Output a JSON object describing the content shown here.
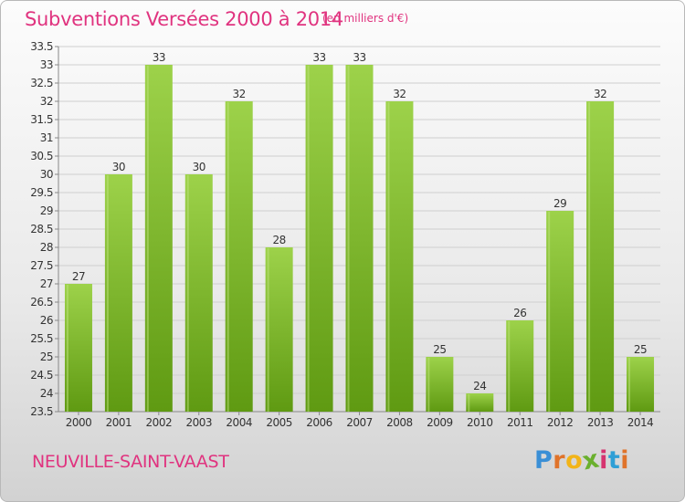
{
  "header": {
    "title": "Subventions Versées 2000 à 2014",
    "subtitle": "(en milliers d'€)"
  },
  "footer": {
    "commune": "NEUVILLE-SAINT-VAAST",
    "logo_letters": [
      "P",
      "r",
      "o",
      "x",
      "i",
      "t",
      "i"
    ]
  },
  "colors": {
    "title": "#e0337f",
    "bar_top": "#9dd24a",
    "bar_bottom": "#5f9a12",
    "grid": "#cfcfcf",
    "logo": [
      "#3a8fd6",
      "#e0732a",
      "#f2b418",
      "#6ab02e",
      "#d6336f",
      "#2f9fd6",
      "#e0732a"
    ]
  },
  "chart_data": {
    "type": "bar",
    "categories": [
      "2000",
      "2001",
      "2002",
      "2003",
      "2004",
      "2005",
      "2006",
      "2007",
      "2008",
      "2009",
      "2010",
      "2011",
      "2012",
      "2013",
      "2014"
    ],
    "values": [
      27,
      30,
      33,
      30,
      32,
      28,
      33,
      33,
      32,
      25,
      24,
      26,
      29,
      32,
      25
    ],
    "data_labels": [
      "27",
      "30",
      "33",
      "30",
      "32",
      "28",
      "33",
      "33",
      "32",
      "25",
      "24",
      "26",
      "29",
      "32",
      "25"
    ],
    "title": "Subventions Versées 2000 à 2014",
    "xlabel": "",
    "ylabel": "",
    "ylim": [
      23.5,
      33.5
    ],
    "yticks": [
      "23.5",
      "24",
      "24.5",
      "25",
      "25.5",
      "26",
      "26.5",
      "27",
      "27.5",
      "28",
      "28.5",
      "29",
      "29.5",
      "30",
      "30.5",
      "31",
      "31.5",
      "32",
      "32.5",
      "33",
      "33.5"
    ],
    "grid": true,
    "legend": "none"
  }
}
